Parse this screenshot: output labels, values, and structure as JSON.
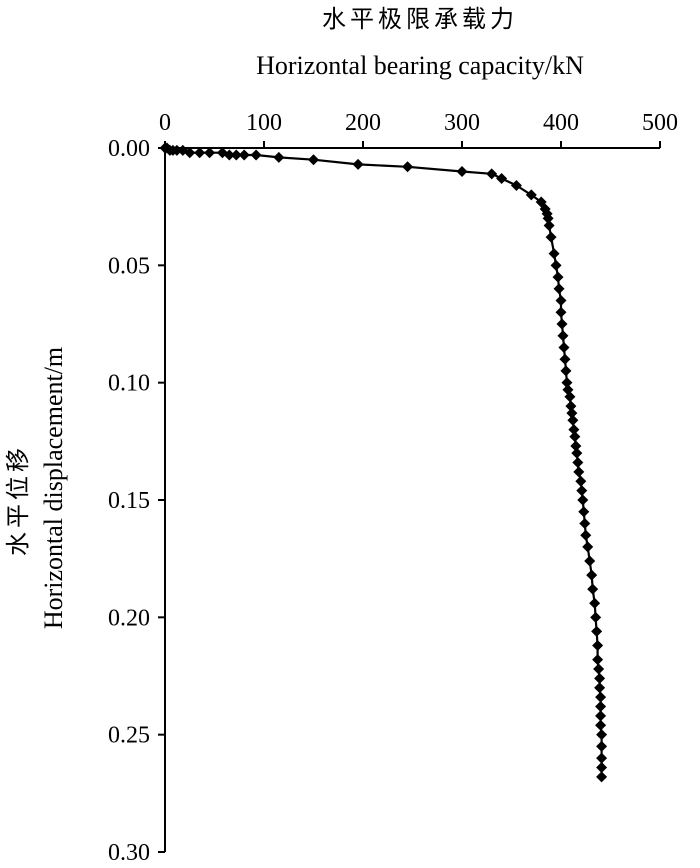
{
  "chart_data": {
    "type": "line",
    "title": "水平极限承载力",
    "subtitle": "Horizontal bearing capacity/kN",
    "xlabel": "Horizontal bearing capacity/kN",
    "ylabel_cn": "水平位移",
    "ylabel_en": "Horizontal displacement/m",
    "x_axis_position": "top",
    "y_axis_inverted": true,
    "xlim": [
      0,
      500
    ],
    "ylim": [
      0,
      0.3
    ],
    "x_ticks": [
      "0",
      "100",
      "200",
      "300",
      "400",
      "500"
    ],
    "y_ticks": [
      "0.00",
      "0.05",
      "0.10",
      "0.15",
      "0.20",
      "0.25",
      "0.30"
    ],
    "grid": false,
    "marker": "diamond",
    "series": [
      {
        "x": [
          0,
          2,
          5,
          8,
          12,
          18,
          25,
          35,
          45,
          58,
          65,
          72,
          80,
          92,
          115,
          150,
          195,
          245,
          300,
          330,
          340,
          355,
          370,
          380,
          384,
          386,
          387,
          388,
          390,
          393,
          395,
          397,
          398,
          400,
          400,
          401,
          402,
          403,
          404,
          405,
          406,
          407,
          409,
          410,
          411,
          412,
          413,
          414,
          415,
          416,
          417,
          418,
          420,
          421,
          422,
          423,
          424,
          425,
          427,
          429,
          431,
          432,
          434,
          435,
          436,
          437,
          437,
          438,
          439,
          439,
          440,
          440,
          440,
          440,
          441,
          441,
          441,
          441,
          441
        ],
        "y": [
          0.0,
          0.0,
          0.001,
          0.001,
          0.001,
          0.001,
          0.002,
          0.002,
          0.002,
          0.002,
          0.003,
          0.003,
          0.003,
          0.003,
          0.004,
          0.005,
          0.007,
          0.008,
          0.01,
          0.011,
          0.013,
          0.016,
          0.02,
          0.023,
          0.026,
          0.028,
          0.03,
          0.033,
          0.038,
          0.045,
          0.05,
          0.055,
          0.06,
          0.065,
          0.07,
          0.075,
          0.08,
          0.085,
          0.09,
          0.095,
          0.1,
          0.103,
          0.106,
          0.11,
          0.113,
          0.116,
          0.12,
          0.123,
          0.127,
          0.13,
          0.134,
          0.138,
          0.142,
          0.146,
          0.15,
          0.155,
          0.16,
          0.165,
          0.17,
          0.176,
          0.182,
          0.188,
          0.194,
          0.2,
          0.206,
          0.212,
          0.218,
          0.222,
          0.226,
          0.23,
          0.234,
          0.238,
          0.242,
          0.246,
          0.25,
          0.255,
          0.26,
          0.264,
          0.268
        ]
      }
    ]
  }
}
